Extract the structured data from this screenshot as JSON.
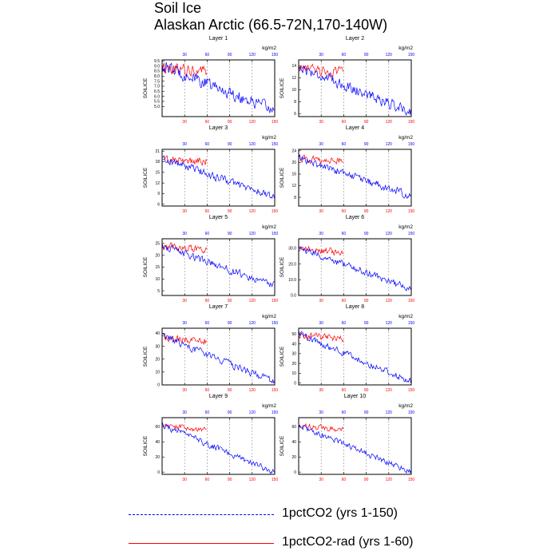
{
  "title": {
    "line1": "Soil Ice",
    "line2": "Alaskan Arctic (66.5-72N,170-140W)"
  },
  "colors": {
    "series_a": "#0000ff",
    "series_b": "#ff0000",
    "grid": "#888888",
    "axis": "#000000"
  },
  "legend": [
    {
      "label": "1pctCO2 (yrs 1-150)",
      "color": "#0000ff",
      "style": "dashed"
    },
    {
      "label": "1pctCO2-rad (yrs 1-60)",
      "color": "#ff0000",
      "style": "solid"
    }
  ],
  "chart_data": [
    {
      "type": "line",
      "title": "Layer 1",
      "ylabel": "SOILICE",
      "units": "kg/m2",
      "xlim": [
        0,
        150
      ],
      "xticks": [
        30,
        60,
        90,
        120,
        150
      ],
      "ylim": [
        4.0,
        9.6
      ],
      "yticks": [
        "5.0",
        "5.5",
        "6.0",
        "6.5",
        "7.0",
        "7.5",
        "8.0",
        "8.5",
        "9.0",
        "9.5"
      ],
      "yticks_vals": [
        5.0,
        5.5,
        6.0,
        6.5,
        7.0,
        7.5,
        8.0,
        8.5,
        9.0,
        9.5
      ],
      "series": [
        {
          "start": 9.0,
          "end": 4.6,
          "noise": 0.55,
          "len": 150
        },
        {
          "start": 8.8,
          "end": 7.9,
          "noise": 0.55,
          "len": 60
        }
      ]
    },
    {
      "type": "line",
      "title": "Layer 2",
      "ylabel": "SOILICE",
      "units": "kg/m2",
      "xlim": [
        0,
        150
      ],
      "xticks": [
        30,
        60,
        90,
        120,
        150
      ],
      "ylim": [
        5.5,
        15.0
      ],
      "yticks": [
        "6",
        "8",
        "10",
        "12",
        "14"
      ],
      "yticks_vals": [
        6,
        8,
        10,
        12,
        14
      ],
      "series": [
        {
          "start": 13.8,
          "end": 6.3,
          "noise": 0.8,
          "len": 150
        },
        {
          "start": 13.5,
          "end": 12.0,
          "noise": 0.8,
          "len": 60
        }
      ]
    },
    {
      "type": "line",
      "title": "Layer 3",
      "ylabel": "SOILICE",
      "units": "kg/m2",
      "xlim": [
        0,
        150
      ],
      "xticks": [
        30,
        60,
        90,
        120,
        150
      ],
      "ylim": [
        5.5,
        21.5
      ],
      "yticks": [
        "6",
        "9",
        "12",
        "15",
        "18",
        "21"
      ],
      "yticks_vals": [
        6,
        9,
        12,
        15,
        18,
        21
      ],
      "series": [
        {
          "start": 19.0,
          "end": 8.0,
          "noise": 1.0,
          "len": 150
        },
        {
          "start": 18.8,
          "end": 16.8,
          "noise": 1.0,
          "len": 60
        }
      ]
    },
    {
      "type": "line",
      "title": "Layer 4",
      "ylabel": "SOILICE",
      "units": "kg/m2",
      "xlim": [
        0,
        150
      ],
      "xticks": [
        30,
        60,
        90,
        120,
        150
      ],
      "ylim": [
        5.0,
        24.5
      ],
      "yticks": [
        "8",
        "12",
        "16",
        "20",
        "24"
      ],
      "yticks_vals": [
        8,
        12,
        16,
        20,
        24
      ],
      "series": [
        {
          "start": 21.5,
          "end": 8.5,
          "noise": 1.2,
          "len": 150
        },
        {
          "start": 21.3,
          "end": 19.0,
          "noise": 1.2,
          "len": 60
        }
      ]
    },
    {
      "type": "line",
      "title": "Layer 5",
      "ylabel": "SOILICE",
      "units": "kg/m2",
      "xlim": [
        0,
        150
      ],
      "xticks": [
        30,
        60,
        90,
        120,
        150
      ],
      "ylim": [
        3.0,
        27.0
      ],
      "yticks": [
        "5",
        "10",
        "15",
        "20",
        "25"
      ],
      "yticks_vals": [
        5,
        10,
        15,
        20,
        25
      ],
      "series": [
        {
          "start": 24.0,
          "end": 7.0,
          "noise": 1.4,
          "len": 150
        },
        {
          "start": 23.8,
          "end": 20.5,
          "noise": 1.4,
          "len": 60
        }
      ]
    },
    {
      "type": "line",
      "title": "Layer 6",
      "ylabel": "SOILICE",
      "units": "kg/m2",
      "xlim": [
        0,
        150
      ],
      "xticks": [
        30,
        60,
        90,
        120,
        150
      ],
      "ylim": [
        0.0,
        36.0
      ],
      "yticks": [
        "0.0",
        "10.0",
        "20.0",
        "30.0"
      ],
      "yticks_vals": [
        0,
        10,
        20,
        30
      ],
      "series": [
        {
          "start": 30.0,
          "end": 4.0,
          "noise": 2.0,
          "len": 150
        },
        {
          "start": 29.5,
          "end": 24.0,
          "noise": 2.0,
          "len": 60
        }
      ]
    },
    {
      "type": "line",
      "title": "Layer 7",
      "ylabel": "SOILICE",
      "units": "kg/m2",
      "xlim": [
        0,
        150
      ],
      "xticks": [
        30,
        60,
        90,
        120,
        150
      ],
      "ylim": [
        0.0,
        44.0
      ],
      "yticks": [
        "0",
        "10",
        "20",
        "30",
        "40"
      ],
      "yticks_vals": [
        0,
        10,
        20,
        30,
        40
      ],
      "series": [
        {
          "start": 38.0,
          "end": 2.0,
          "noise": 2.5,
          "len": 150
        },
        {
          "start": 37.0,
          "end": 30.0,
          "noise": 2.5,
          "len": 60
        }
      ]
    },
    {
      "type": "line",
      "title": "Layer 8",
      "ylabel": "SOILICE",
      "units": "kg/m2",
      "xlim": [
        0,
        150
      ],
      "xticks": [
        30,
        60,
        90,
        120,
        150
      ],
      "ylim": [
        -2.0,
        56.0
      ],
      "yticks": [
        "0",
        "10",
        "20",
        "30",
        "40",
        "50"
      ],
      "yticks_vals": [
        0,
        10,
        20,
        30,
        40,
        50
      ],
      "series": [
        {
          "start": 50.0,
          "end": 1.5,
          "noise": 3.0,
          "len": 150
        },
        {
          "start": 49.0,
          "end": 40.0,
          "noise": 3.0,
          "len": 60
        }
      ]
    },
    {
      "type": "line",
      "title": "Layer 9",
      "ylabel": "SOILICE",
      "units": "kg/m2",
      "xlim": [
        0,
        150
      ],
      "xticks": [
        30,
        60,
        90,
        120,
        150
      ],
      "ylim": [
        -3.0,
        72.0
      ],
      "yticks": [
        "0",
        "20",
        "40",
        "60"
      ],
      "yticks_vals": [
        0,
        20,
        40,
        60
      ],
      "series": [
        {
          "start": 62.0,
          "end": 0.0,
          "noise": 3.5,
          "len": 150
        },
        {
          "start": 61.0,
          "end": 49.0,
          "noise": 3.5,
          "len": 60
        }
      ]
    },
    {
      "type": "line",
      "title": "Layer 10",
      "ylabel": "SOILICE",
      "units": "kg/m2",
      "xlim": [
        0,
        150
      ],
      "xticks": [
        30,
        60,
        90,
        120,
        150
      ],
      "ylim": [
        -3.0,
        72.0
      ],
      "yticks": [
        "0",
        "20",
        "40",
        "60"
      ],
      "yticks_vals": [
        0,
        20,
        40,
        60
      ],
      "series": [
        {
          "start": 62.0,
          "end": 0.0,
          "noise": 3.5,
          "len": 150
        },
        {
          "start": 61.0,
          "end": 49.0,
          "noise": 3.5,
          "len": 60
        }
      ]
    }
  ]
}
